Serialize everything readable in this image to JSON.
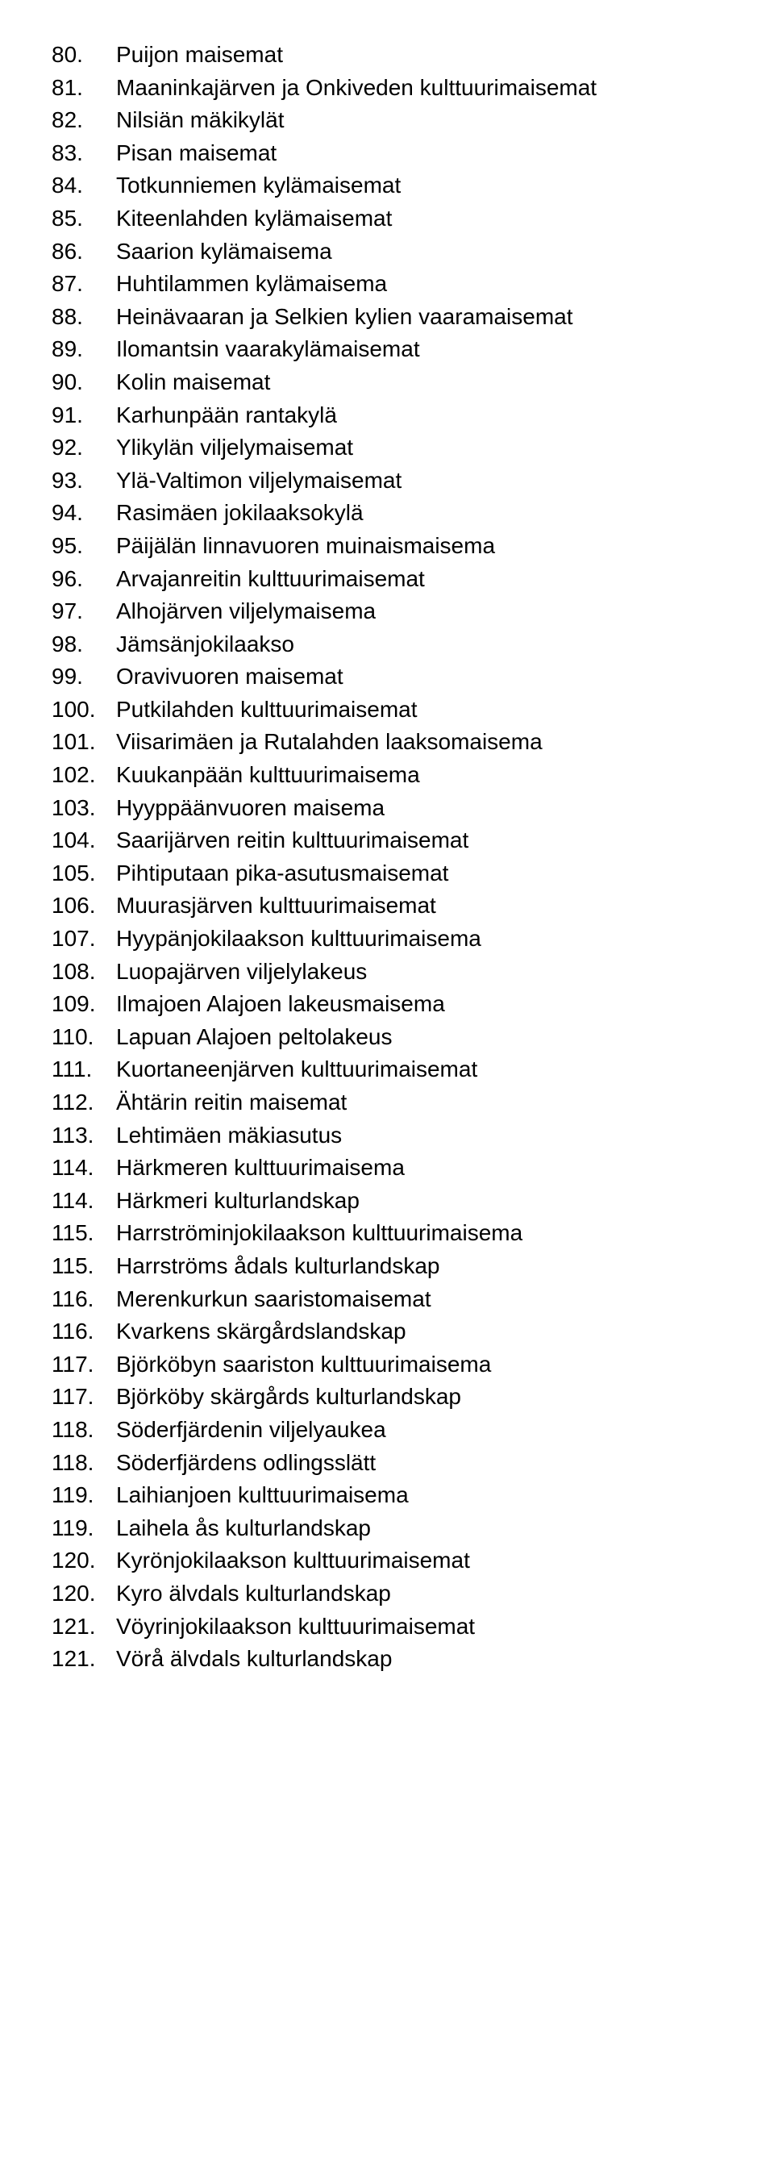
{
  "items": [
    {
      "num": "80.",
      "label": "Puijon maisemat"
    },
    {
      "num": "81.",
      "label": "Maaninkajärven ja Onkiveden kulttuurimaisemat"
    },
    {
      "num": "82.",
      "label": "Nilsiän mäkikylät"
    },
    {
      "num": "83.",
      "label": "Pisan maisemat"
    },
    {
      "num": "84.",
      "label": "Totkunniemen kylämaisemat"
    },
    {
      "num": "85.",
      "label": "Kiteenlahden kylämaisemat"
    },
    {
      "num": "86.",
      "label": "Saarion kylämaisema"
    },
    {
      "num": "87.",
      "label": "Huhtilammen kylämaisema"
    },
    {
      "num": "88.",
      "label": "Heinävaaran ja Selkien kylien vaaramaisemat"
    },
    {
      "num": "89.",
      "label": "Ilomantsin vaarakylämaisemat"
    },
    {
      "num": "90.",
      "label": "Kolin maisemat"
    },
    {
      "num": "91.",
      "label": "Karhunpään rantakylä"
    },
    {
      "num": "92.",
      "label": "Ylikylän viljelymaisemat"
    },
    {
      "num": "93.",
      "label": "Ylä-Valtimon viljelymaisemat"
    },
    {
      "num": "94.",
      "label": "Rasimäen jokilaaksokylä"
    },
    {
      "num": "95.",
      "label": "Päijälän linnavuoren muinaismaisema"
    },
    {
      "num": "96.",
      "label": "Arvajanreitin kulttuurimaisemat"
    },
    {
      "num": "97.",
      "label": "Alhojärven viljelymaisema"
    },
    {
      "num": "98.",
      "label": "Jämsänjokilaakso"
    },
    {
      "num": "99.",
      "label": "Oravivuoren maisemat"
    },
    {
      "num": "100.",
      "label": "Putkilahden kulttuurimaisemat"
    },
    {
      "num": "101.",
      "label": "Viisarimäen ja Rutalahden laaksomaisema"
    },
    {
      "num": "102.",
      "label": "Kuukanpään kulttuurimaisema"
    },
    {
      "num": "103.",
      "label": "Hyyppäänvuoren maisema"
    },
    {
      "num": "104.",
      "label": "Saarijärven reitin kulttuurimaisemat"
    },
    {
      "num": "105.",
      "label": "Pihtiputaan pika-asutusmaisemat"
    },
    {
      "num": "106.",
      "label": "Muurasjärven kulttuurimaisemat"
    },
    {
      "num": "107.",
      "label": "Hyypänjokilaakson kulttuurimaisema"
    },
    {
      "num": "108.",
      "label": "Luopajärven viljelylakeus"
    },
    {
      "num": "109.",
      "label": "Ilmajoen Alajoen lakeusmaisema"
    },
    {
      "num": "110.",
      "label": "Lapuan Alajoen peltolakeus"
    },
    {
      "num": "111.",
      "label": "Kuortaneenjärven kulttuurimaisemat"
    },
    {
      "num": "112.",
      "label": "Ähtärin reitin maisemat"
    },
    {
      "num": "113.",
      "label": "Lehtimäen mäkiasutus"
    },
    {
      "num": "114.",
      "label": "Härkmeren kulttuurimaisema"
    },
    {
      "num": "114.",
      "label": "Härkmeri kulturlandskap"
    },
    {
      "num": "115.",
      "label": "Harrströminjokilaakson kulttuurimaisema"
    },
    {
      "num": "115.",
      "label": "Harrströms ådals kulturlandskap"
    },
    {
      "num": "116.",
      "label": "Merenkurkun saaristomaisemat"
    },
    {
      "num": "116.",
      "label": "Kvarkens skärgårdslandskap"
    },
    {
      "num": "117.",
      "label": "Björköbyn saariston kulttuurimaisema"
    },
    {
      "num": "117.",
      "label": "Björköby skärgårds kulturlandskap"
    },
    {
      "num": "118.",
      "label": "Söderfjärdenin viljelyaukea"
    },
    {
      "num": "118.",
      "label": "Söderfjärdens odlingsslätt"
    },
    {
      "num": "119.",
      "label": "Laihianjoen kulttuurimaisema"
    },
    {
      "num": "119.",
      "label": "Laihela ås kulturlandskap"
    },
    {
      "num": "120.",
      "label": "Kyrönjokilaakson kulttuurimaisemat"
    },
    {
      "num": "120.",
      "label": "Kyro älvdals kulturlandskap"
    },
    {
      "num": "121.",
      "label": "Vöyrinjokilaakson kulttuurimaisemat"
    },
    {
      "num": "121.",
      "label": "Vörå älvdals kulturlandskap"
    }
  ]
}
